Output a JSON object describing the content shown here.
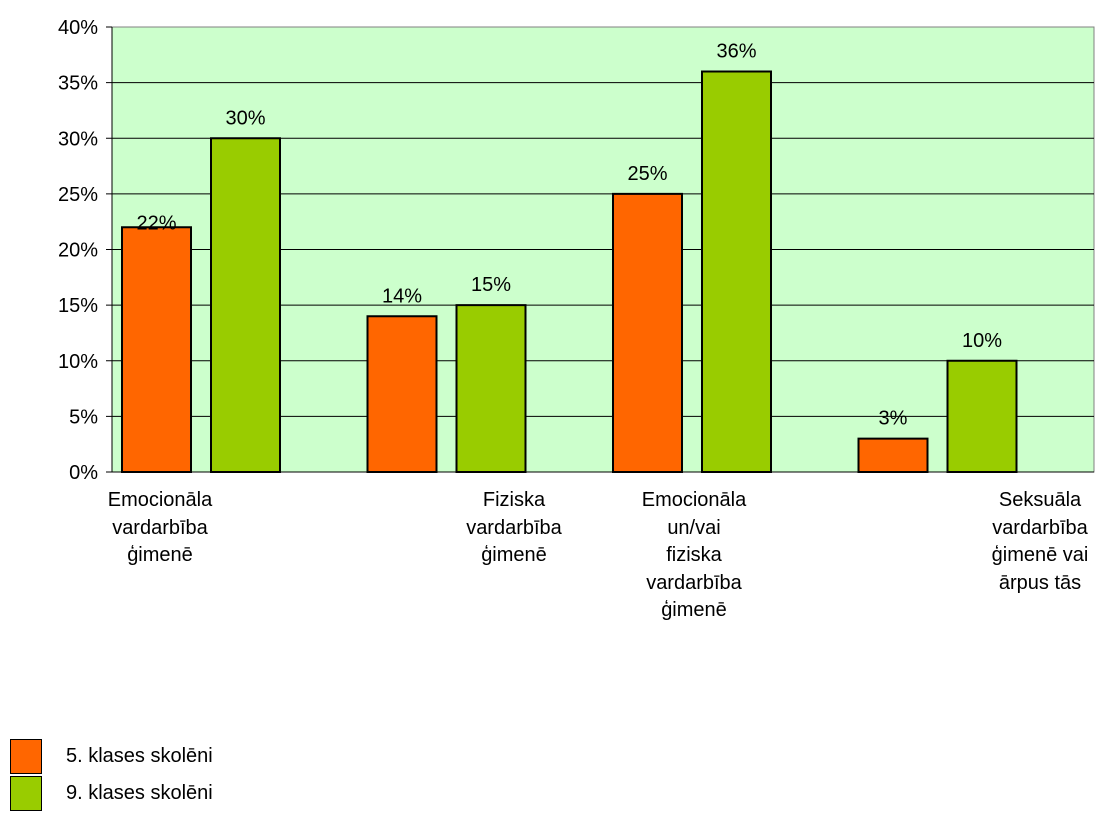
{
  "chart_data": {
    "type": "bar",
    "categories": [
      "Emocionāla\nvardarbība\nģimenē",
      "Fiziska\nvardarbība\nģimenē",
      "Emocionāla\nun/vai\nfiziska\nvardarbība\nģimenē",
      "Seksuāla\nvardarbība\nģimenē vai\nārpus tās"
    ],
    "series": [
      {
        "name": "5. klases skolēni",
        "values": [
          22,
          14,
          25,
          3
        ],
        "color": "#FF6600"
      },
      {
        "name": "9. klases skolēni",
        "values": [
          30,
          15,
          36,
          10
        ],
        "color": "#99CC00"
      }
    ],
    "data_labels": [
      [
        "22%",
        "14%",
        "25%",
        "3%"
      ],
      [
        "30%",
        "15%",
        "36%",
        "10%"
      ]
    ],
    "y_tick_labels": [
      "0%",
      "5%",
      "10%",
      "15%",
      "20%",
      "25%",
      "30%",
      "35%",
      "40%"
    ],
    "ylim": [
      0,
      40
    ],
    "grid": true,
    "plot_background": "#CCFFCC",
    "legend_position": "bottom-left",
    "title": "",
    "xlabel": "",
    "ylabel": ""
  }
}
